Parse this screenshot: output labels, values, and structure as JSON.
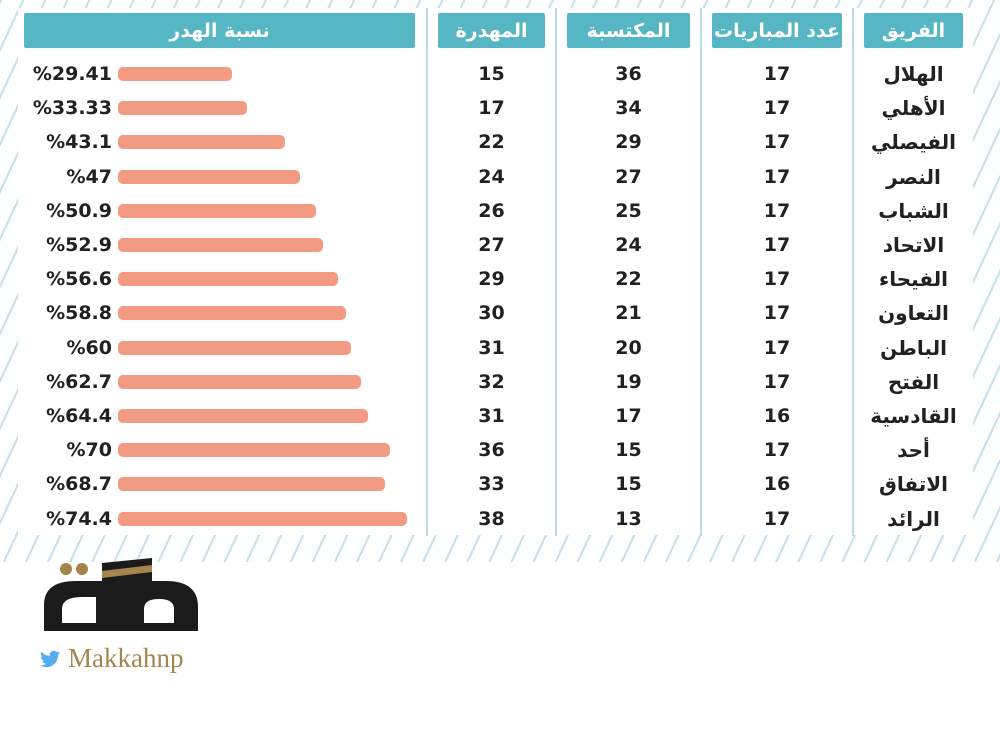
{
  "table": {
    "columns": [
      {
        "key": "team",
        "label": "الفريق"
      },
      {
        "key": "matches",
        "label": "عدد المباريات"
      },
      {
        "key": "earned",
        "label": "المكتسبة"
      },
      {
        "key": "wasted",
        "label": "المهدرة"
      },
      {
        "key": "pct",
        "label": "نسبة الهدر"
      }
    ],
    "rows": [
      {
        "team": "الهلال",
        "matches": 17,
        "earned": 36,
        "wasted": 15,
        "pct_label": "%29.41",
        "pct": 29.41
      },
      {
        "team": "الأهلي",
        "matches": 17,
        "earned": 34,
        "wasted": 17,
        "pct_label": "%33.33",
        "pct": 33.33
      },
      {
        "team": "الفيصلي",
        "matches": 17,
        "earned": 29,
        "wasted": 22,
        "pct_label": "%43.1",
        "pct": 43.1
      },
      {
        "team": "النصر",
        "matches": 17,
        "earned": 27,
        "wasted": 24,
        "pct_label": "%47",
        "pct": 47
      },
      {
        "team": "الشباب",
        "matches": 17,
        "earned": 25,
        "wasted": 26,
        "pct_label": "%50.9",
        "pct": 50.9
      },
      {
        "team": "الاتحاد",
        "matches": 17,
        "earned": 24,
        "wasted": 27,
        "pct_label": "%52.9",
        "pct": 52.9
      },
      {
        "team": "الفيحاء",
        "matches": 17,
        "earned": 22,
        "wasted": 29,
        "pct_label": "%56.6",
        "pct": 56.6
      },
      {
        "team": "التعاون",
        "matches": 17,
        "earned": 21,
        "wasted": 30,
        "pct_label": "%58.8",
        "pct": 58.8
      },
      {
        "team": "الباطن",
        "matches": 17,
        "earned": 20,
        "wasted": 31,
        "pct_label": "%60",
        "pct": 60
      },
      {
        "team": "الفتح",
        "matches": 17,
        "earned": 19,
        "wasted": 32,
        "pct_label": "%62.7",
        "pct": 62.7
      },
      {
        "team": "القادسية",
        "matches": 16,
        "earned": 17,
        "wasted": 31,
        "pct_label": "%64.4",
        "pct": 64.4
      },
      {
        "team": "أحد",
        "matches": 17,
        "earned": 15,
        "wasted": 36,
        "pct_label": "%70",
        "pct": 70
      },
      {
        "team": "الاتفاق",
        "matches": 16,
        "earned": 15,
        "wasted": 33,
        "pct_label": "%68.7",
        "pct": 68.7
      },
      {
        "team": "الرائد",
        "matches": 17,
        "earned": 13,
        "wasted": 38,
        "pct_label": "%74.4",
        "pct": 74.4
      }
    ]
  },
  "chart_data": {
    "type": "bar",
    "orientation": "horizontal",
    "title": "نسبة الهدر",
    "categories": [
      "الهلال",
      "الأهلي",
      "الفيصلي",
      "النصر",
      "الشباب",
      "الاتحاد",
      "الفيحاء",
      "التعاون",
      "الباطن",
      "الفتح",
      "القادسية",
      "أحد",
      "الاتفاق",
      "الرائد"
    ],
    "series": [
      {
        "name": "عدد المباريات",
        "values": [
          17,
          17,
          17,
          17,
          17,
          17,
          17,
          17,
          17,
          17,
          16,
          17,
          16,
          17
        ]
      },
      {
        "name": "المكتسبة",
        "values": [
          36,
          34,
          29,
          27,
          25,
          24,
          22,
          21,
          20,
          19,
          17,
          15,
          15,
          13
        ]
      },
      {
        "name": "المهدرة",
        "values": [
          15,
          17,
          22,
          24,
          26,
          27,
          29,
          30,
          31,
          32,
          31,
          36,
          33,
          38
        ]
      },
      {
        "name": "نسبة الهدر %",
        "values": [
          29.41,
          33.33,
          43.1,
          47,
          50.9,
          52.9,
          56.6,
          58.8,
          60,
          62.7,
          64.4,
          70,
          68.7,
          74.4
        ]
      }
    ],
    "value_labels": [
      "%29.41",
      "%33.33",
      "%43.1",
      "%47",
      "%50.9",
      "%52.9",
      "%56.6",
      "%58.8",
      "%60",
      "%62.7",
      "%64.4",
      "%70",
      "%68.7",
      "%74.4"
    ],
    "xlim": [
      0,
      80
    ],
    "grid": false,
    "legend_position": "column-headers"
  },
  "footer": {
    "logo_text": "مكة",
    "twitter_handle": "Makkahnp"
  },
  "colors": {
    "teal_header": "#56b6c3",
    "separator": "#b7dce3",
    "bar_salmon": "#f29b82",
    "hatch_line": "#c6dfe9",
    "logo_gold": "#a5854e",
    "twitter_blue": "#55acee",
    "text_dark": "#212121"
  }
}
